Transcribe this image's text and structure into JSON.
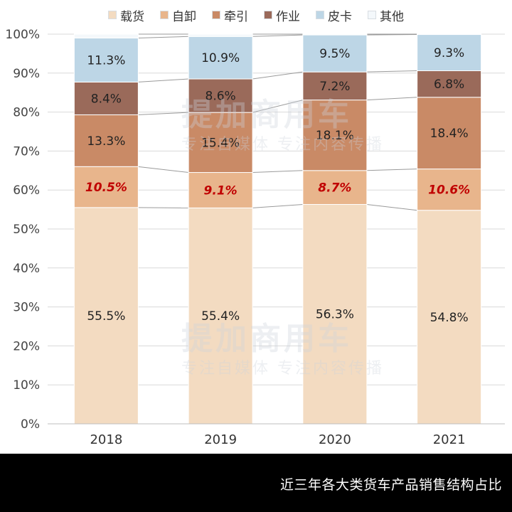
{
  "chart_data": {
    "type": "bar",
    "stacked": true,
    "percent": true,
    "categories": [
      "2018",
      "2019",
      "2020",
      "2021"
    ],
    "series": [
      {
        "name": "载货",
        "color": "#f3dbc1",
        "values": [
          55.5,
          55.4,
          56.3,
          54.8
        ],
        "labels": [
          "55.5%",
          "55.4%",
          "56.3%",
          "54.8%"
        ],
        "label_style": "normal"
      },
      {
        "name": "自卸",
        "color": "#e8b58c",
        "values": [
          10.5,
          9.1,
          8.7,
          10.6
        ],
        "labels": [
          "10.5%",
          "9.1%",
          "8.7%",
          "10.6%"
        ],
        "label_style": "highlight"
      },
      {
        "name": "牵引",
        "color": "#c98a66",
        "values": [
          13.3,
          15.4,
          18.1,
          18.4
        ],
        "labels": [
          "13.3%",
          "15.4%",
          "18.1%",
          "18.4%"
        ],
        "label_style": "normal"
      },
      {
        "name": "作业",
        "color": "#9a6a5a",
        "values": [
          8.4,
          8.6,
          7.2,
          6.8
        ],
        "labels": [
          "8.4%",
          "8.6%",
          "7.2%",
          "6.8%"
        ],
        "label_style": "normal"
      },
      {
        "name": "皮卡",
        "color": "#bdd6e6",
        "values": [
          11.3,
          10.9,
          9.5,
          9.3
        ],
        "labels": [
          "11.3%",
          "10.9%",
          "9.5%",
          "9.3%"
        ],
        "label_style": "normal"
      },
      {
        "name": "其他",
        "color": "#f4f8fb",
        "values": [
          1.0,
          0.6,
          0.2,
          0.1
        ],
        "labels": [
          "",
          "",
          "",
          ""
        ],
        "label_style": "none"
      }
    ],
    "yticks": [
      "0%",
      "10%",
      "20%",
      "30%",
      "40%",
      "50%",
      "60%",
      "70%",
      "80%",
      "90%",
      "100%"
    ],
    "ylim": [
      0,
      100
    ],
    "legend_position": "top",
    "grid": true,
    "highlight_label_color": "#c00000"
  },
  "footer": {
    "caption": "近三年各大类货车产品销售结构占比"
  },
  "watermark": {
    "main": "提加商用车",
    "sub": "专注自媒体 专注内容传播"
  }
}
